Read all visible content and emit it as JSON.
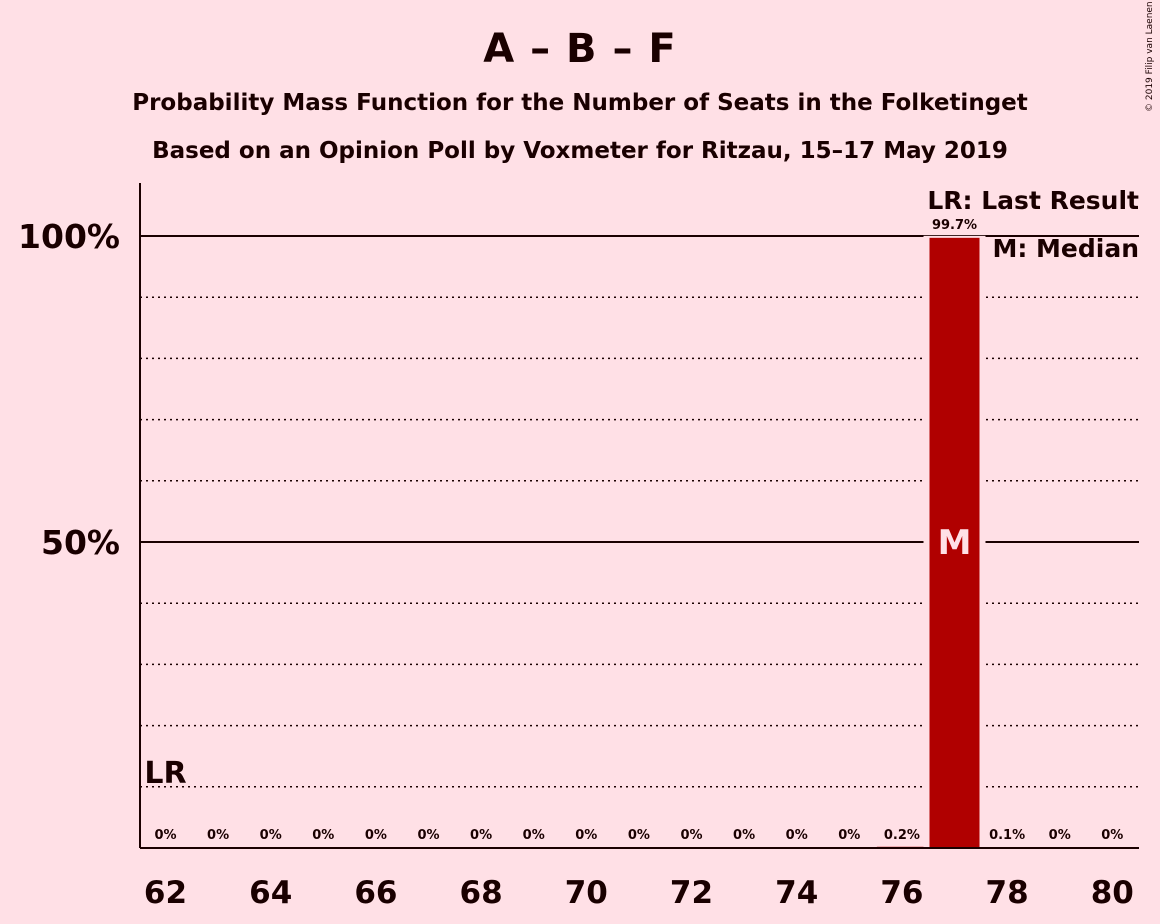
{
  "title": "A – B – F",
  "subtitle1": "Probability Mass Function for the Number of Seats in the Folketinget",
  "subtitle2": "Based on an Opinion Poll by Voxmeter for Ritzau, 15–17 May 2019",
  "copyright": "© 2019 Filip van Laenen",
  "legend": {
    "lr": "LR: Last Result",
    "m": "M: Median"
  },
  "markers": {
    "lr_text": "LR",
    "median_text": "M",
    "last_result_seat": 62,
    "median_seat": 77
  },
  "colors": {
    "bar": "#B00000",
    "background": "#FFE0E6",
    "text": "#1a0000"
  },
  "chart_data": {
    "type": "bar",
    "xlabel": "",
    "ylabel": "",
    "ylim": [
      0,
      100
    ],
    "ytick_labels": [
      {
        "value": 50,
        "label": "50%"
      },
      {
        "value": 100,
        "label": "100%"
      }
    ],
    "xtick_labels": [
      "62",
      "64",
      "66",
      "68",
      "70",
      "72",
      "74",
      "76",
      "78",
      "80"
    ],
    "categories": [
      62,
      63,
      64,
      65,
      66,
      67,
      68,
      69,
      70,
      71,
      72,
      73,
      74,
      75,
      76,
      77,
      78,
      79,
      80
    ],
    "values": [
      0,
      0,
      0,
      0,
      0,
      0,
      0,
      0,
      0,
      0,
      0,
      0,
      0,
      0,
      0.2,
      99.7,
      0.1,
      0,
      0
    ],
    "labels": [
      "0%",
      "0%",
      "0%",
      "0%",
      "0%",
      "0%",
      "0%",
      "0%",
      "0%",
      "0%",
      "0%",
      "0%",
      "0%",
      "0%",
      "0.2%",
      "99.7%",
      "0.1%",
      "0%",
      "0%"
    ],
    "gridlines": {
      "solid": [
        50,
        100
      ],
      "dotted": [
        10,
        20,
        30,
        40,
        60,
        70,
        80,
        90
      ]
    }
  }
}
